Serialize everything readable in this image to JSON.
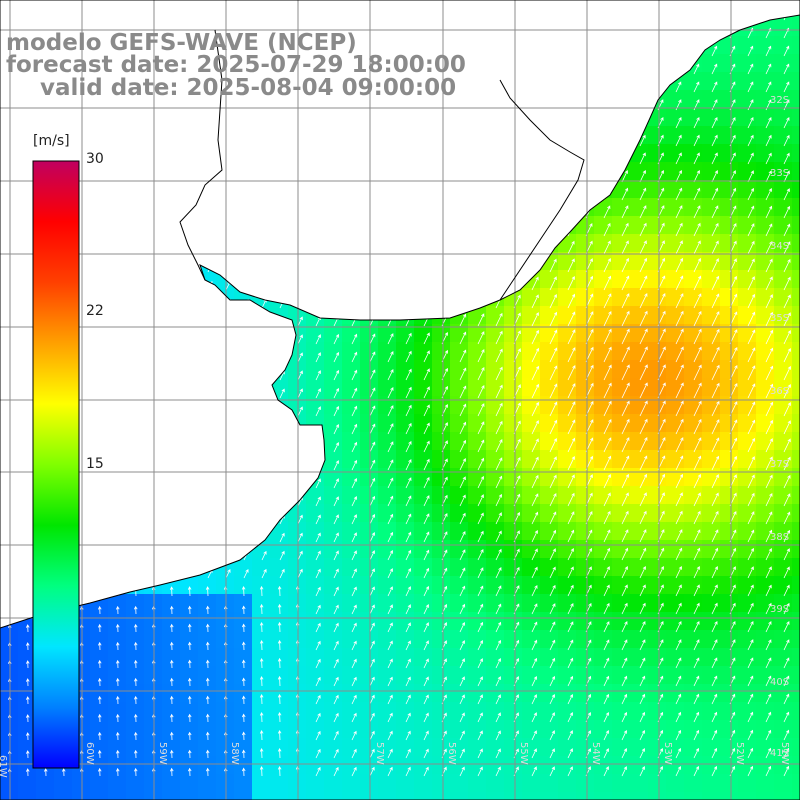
{
  "title": {
    "model": "modelo GEFS-WAVE (NCEP)",
    "forecast": "forecast date: 2025-07-29 18:00:00",
    "valid": "valid date: 2025-08-04 09:00:00"
  },
  "colorbar": {
    "unit": "[m/s]",
    "min": 0,
    "max": 30,
    "ticks": [
      "30",
      "22",
      "15"
    ],
    "tick_values": [
      30,
      22,
      15
    ],
    "colors": [
      "#0000ff",
      "#0080ff",
      "#00e6ff",
      "#00ff80",
      "#00e600",
      "#80ff00",
      "#ffff00",
      "#ffa000",
      "#ff4000",
      "#ff0000",
      "#c00060"
    ]
  },
  "lat_labels": [
    "32S",
    "33S",
    "34S",
    "35S",
    "36S",
    "37S",
    "38S",
    "39S",
    "40S",
    "41S"
  ],
  "lon_labels": [
    "61W",
    "60W",
    "59W",
    "58W",
    "57W",
    "56W",
    "55W",
    "54W",
    "53W",
    "52W",
    "51W"
  ],
  "field": {
    "land_color": "#ffffff",
    "grid_color": "#8c8c8c",
    "coast_color": "#000000",
    "arrow_color": "#ffffff"
  }
}
